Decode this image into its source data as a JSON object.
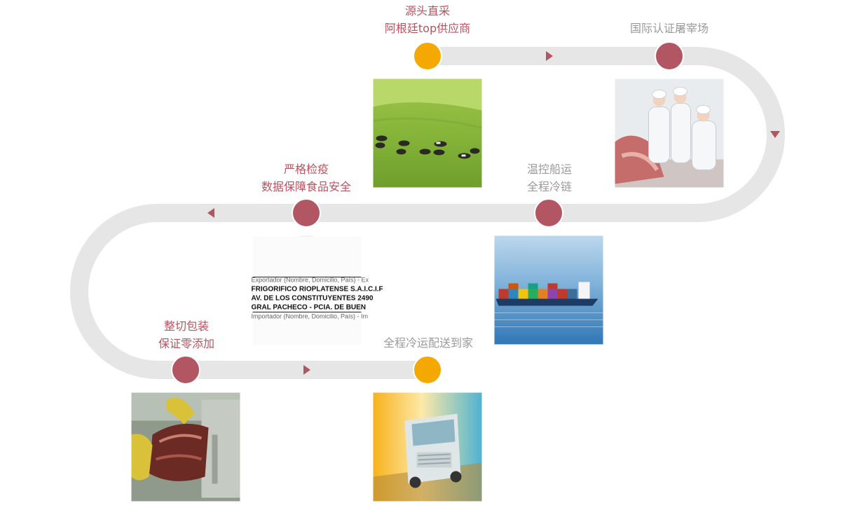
{
  "steps": [
    {
      "id": "source",
      "lines": [
        "源头直采",
        "阿根廷top供应商"
      ],
      "label_style": "accent",
      "node_color": "#f5a800",
      "image": "cattle-pasture-photo"
    },
    {
      "id": "slaughter",
      "lines": [
        "国际认证屠宰场"
      ],
      "label_style": "muted",
      "node_color": "#b15662",
      "image": "slaughterhouse-workers-photo"
    },
    {
      "id": "shipping",
      "lines": [
        "温控船运",
        "全程冷链"
      ],
      "label_style": "muted",
      "node_color": "#b15662",
      "image": "container-ship-photo"
    },
    {
      "id": "inspection",
      "lines": [
        "严格检疫",
        "数据保障食品安全"
      ],
      "label_style": "accent",
      "node_color": "#b15662",
      "image": "export-label-document-photo",
      "document_text": [
        "Exportador (Nombre, Domicilio, País) - Ex",
        "FRIGORIFICO RIOPLATENSE S.A.I.C.I.F",
        "AV. DE LOS CONSTITUYENTES 2490",
        "GRAL PACHECO - PCIA. DE BUEN",
        "Importador (Nombre, Domicilio, País) - Im"
      ]
    },
    {
      "id": "packaging",
      "lines": [
        "整切包装",
        "保证零添加"
      ],
      "label_style": "accent",
      "node_color": "#b15662",
      "image": "meat-cutting-photo"
    },
    {
      "id": "delivery",
      "lines": [
        "全程冷运配送到家"
      ],
      "label_style": "muted",
      "node_color": "#f5a800",
      "image": "delivery-truck-photo"
    }
  ],
  "colors": {
    "track": "#e6e6e6",
    "arrow": "#b15662",
    "accent_text": "#b8525f",
    "muted_text": "#9a9a9a"
  }
}
